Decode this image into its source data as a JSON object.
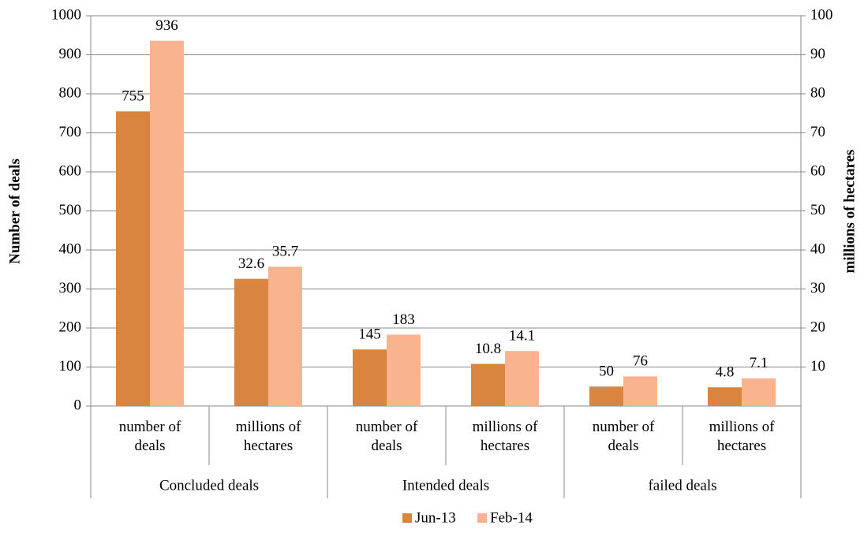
{
  "chart_data": {
    "type": "bar",
    "categories": [
      "number of deals",
      "millions of hectares",
      "number of deals",
      "millions of hectares",
      "number of deals",
      "millions of hectares"
    ],
    "group_labels": [
      "Concluded deals",
      "Intended deals",
      "failed deals"
    ],
    "category_axes": [
      "y",
      "y2",
      "y",
      "y2",
      "y",
      "y2"
    ],
    "series": [
      {
        "name": "Jun-13",
        "color": "#d9843f",
        "values": [
          755,
          32.6,
          145,
          10.8,
          50,
          4.8
        ]
      },
      {
        "name": "Feb-14",
        "color": "#f9b48f",
        "values": [
          936,
          35.7,
          183,
          14.1,
          76,
          7.1
        ]
      }
    ],
    "ylabel": "Number of deals",
    "y2label": "millions of hectares",
    "ylim": [
      0,
      1000
    ],
    "yticks": [
      0,
      100,
      200,
      300,
      400,
      500,
      600,
      700,
      800,
      900,
      1000
    ],
    "y2lim": [
      0,
      100
    ],
    "y2ticks": [
      10,
      20,
      30,
      40,
      50,
      60,
      70,
      80,
      90,
      100
    ],
    "grid": true,
    "legend": "bottom"
  }
}
